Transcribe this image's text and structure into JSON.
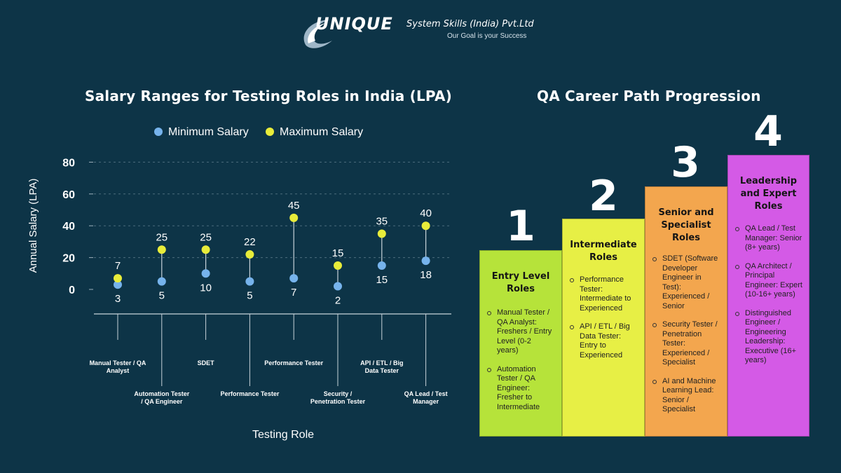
{
  "logo": {
    "brand": "UNIQUE",
    "company": "System Skills (India) Pvt.Ltd",
    "tagline": "Our Goal is your Success"
  },
  "colors": {
    "background": "#0d3447",
    "minimum": "#76b3ec",
    "maximum": "#e8ec3a",
    "step1": "#b6e33a",
    "step2": "#e7ef45",
    "step3": "#f3a64e",
    "step4": "#d45ae6"
  },
  "chart_data": {
    "type": "scatter",
    "title": "Salary Ranges for Testing Roles in India (LPA)",
    "xlabel": "Testing Role",
    "ylabel": "Annual Salary (LPA)",
    "ylim": [
      0,
      80
    ],
    "yticks": [
      0,
      20,
      40,
      60,
      80
    ],
    "grid": true,
    "legend_placement": "top",
    "categories": [
      "Manual Tester / QA Analyst",
      "Automation Tester / QA Engineer",
      "SDET",
      "Performance Tester",
      "Performance Tester",
      "Security / Penetration Tester",
      "API / ETL / Big Data Tester",
      "QA Lead / Test Manager"
    ],
    "series": [
      {
        "name": "Minimum Salary",
        "values": [
          3,
          5,
          10,
          5,
          7,
          2,
          15,
          18
        ]
      },
      {
        "name": "Maximum Salary",
        "values": [
          7,
          25,
          25,
          22,
          45,
          15,
          35,
          40
        ]
      }
    ]
  },
  "career": {
    "title": "QA Career Path Progression",
    "steps": [
      {
        "number": "1",
        "title": "Entry Level Roles",
        "items": [
          "Manual Tester / QA Analyst: Freshers / Entry Level (0-2 years)",
          "Automation Tester / QA Engineer: Fresher to Intermediate"
        ]
      },
      {
        "number": "2",
        "title": "Intermediate Roles",
        "items": [
          "Performance Tester: Intermediate to Experienced",
          "API / ETL / Big Data Tester: Entry to Experienced"
        ]
      },
      {
        "number": "3",
        "title": "Senior and Specialist Roles",
        "items": [
          "SDET (Software Developer Engineer in Test): Experienced / Senior",
          "Security Tester / Penetration Tester: Experienced / Specialist",
          "AI and Machine Learning Lead: Senior / Specialist"
        ]
      },
      {
        "number": "4",
        "title": "Leadership and Expert Roles",
        "items": [
          "QA Lead / Test Manager: Senior (8+ years)",
          "QA Architect / Principal Engineer: Expert (10-16+ years)",
          "Distinguished Engineer / Engineering Leadership: Executive (16+ years)"
        ]
      }
    ]
  }
}
